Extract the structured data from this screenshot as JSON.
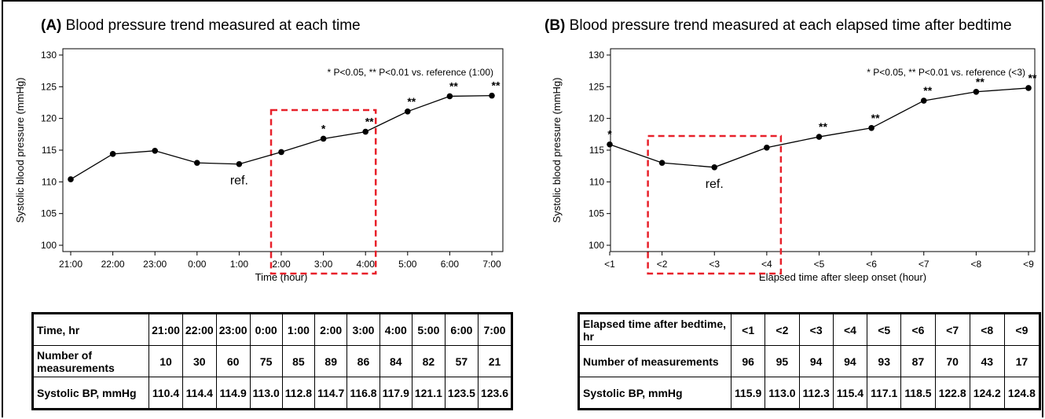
{
  "panels": [
    {
      "letter": "(A)",
      "title": "Blood pressure trend measured at each time",
      "note": "* P<0.05, ** P<0.01 vs. reference (1:00)",
      "ref_label": "ref.",
      "table": {
        "header_label": "Time, hr",
        "count_label": "Number of measurements",
        "bp_label": "Systolic BP, mmHg",
        "columns": [
          "21:00",
          "22:00",
          "23:00",
          "0:00",
          "1:00",
          "2:00",
          "3:00",
          "4:00",
          "5:00",
          "6:00",
          "7:00"
        ],
        "counts": [
          "10",
          "30",
          "60",
          "75",
          "85",
          "89",
          "86",
          "84",
          "82",
          "57",
          "21"
        ],
        "bp": [
          "110.4",
          "114.4",
          "114.9",
          "113.0",
          "112.8",
          "114.7",
          "116.8",
          "117.9",
          "121.1",
          "123.5",
          "123.6"
        ]
      }
    },
    {
      "letter": "(B)",
      "title": "Blood pressure trend measured at each elapsed time after bedtime",
      "note": "* P<0.05, ** P<0.01 vs. reference (<3)",
      "ref_label": "ref.",
      "table": {
        "header_label": "Elapsed time after bedtime, hr",
        "count_label": "Number of measurements",
        "bp_label": "Systolic BP, mmHg",
        "columns": [
          "<1",
          "<2",
          "<3",
          "<4",
          "<5",
          "<6",
          "<7",
          "<8",
          "<9"
        ],
        "counts": [
          "96",
          "95",
          "94",
          "94",
          "93",
          "87",
          "70",
          "43",
          "17"
        ],
        "bp": [
          "115.9",
          "113.0",
          "112.3",
          "115.4",
          "117.1",
          "118.5",
          "122.8",
          "124.2",
          "124.8"
        ]
      }
    }
  ],
  "chart_data": [
    {
      "type": "line",
      "xlabel": "Time (hour)",
      "ylabel": "Systolic blood pressure (mmHg)",
      "ylim": [
        100,
        130
      ],
      "yticks": [
        100,
        105,
        110,
        115,
        120,
        125,
        130
      ],
      "categories": [
        "21:00",
        "22:00",
        "23:00",
        "0:00",
        "1:00",
        "2:00",
        "3:00",
        "4:00",
        "5:00",
        "6:00",
        "7:00"
      ],
      "values": [
        110.4,
        114.4,
        114.9,
        113.0,
        112.8,
        114.7,
        116.8,
        117.9,
        121.1,
        123.5,
        123.6
      ],
      "significance": [
        "",
        "",
        "",
        "",
        "",
        "",
        "*",
        "**",
        "**",
        "**",
        "**"
      ],
      "reference_category": "1:00",
      "highlight_range": [
        "2:00",
        "4:00"
      ],
      "highlight_color": "#e8202a",
      "grid": false
    },
    {
      "type": "line",
      "xlabel": "Elapsed time after sleep onset (hour)",
      "ylabel": "Systolic blood pressure (mmHg)",
      "ylim": [
        100,
        130
      ],
      "yticks": [
        100,
        105,
        110,
        115,
        120,
        125,
        130
      ],
      "categories": [
        "<1",
        "<2",
        "<3",
        "<4",
        "<5",
        "<6",
        "<7",
        "<8",
        "<9"
      ],
      "values": [
        115.9,
        113.0,
        112.3,
        115.4,
        117.1,
        118.5,
        122.8,
        124.2,
        124.8
      ],
      "significance": [
        "*",
        "",
        "",
        "",
        "**",
        "**",
        "**",
        "**",
        "**"
      ],
      "reference_category": "<3",
      "highlight_range": [
        "<2",
        "<4"
      ],
      "highlight_color": "#e8202a",
      "grid": false
    }
  ]
}
